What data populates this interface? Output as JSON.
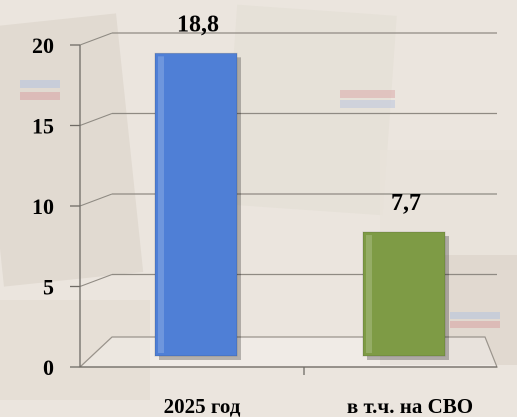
{
  "chart_data": {
    "type": "bar",
    "categories": [
      "2025 год",
      "в т.ч. на СВО"
    ],
    "values": [
      18.8,
      7.7
    ],
    "value_labels": [
      "18,8",
      "7,7"
    ],
    "yticks": [
      "0",
      "5",
      "10",
      "15",
      "20"
    ],
    "ylim": [
      0,
      20
    ],
    "grid": true,
    "legend": "none",
    "title": "",
    "xlabel": "",
    "ylabel": "",
    "colors": [
      "#4f7fd6",
      "#7e9b45"
    ]
  }
}
